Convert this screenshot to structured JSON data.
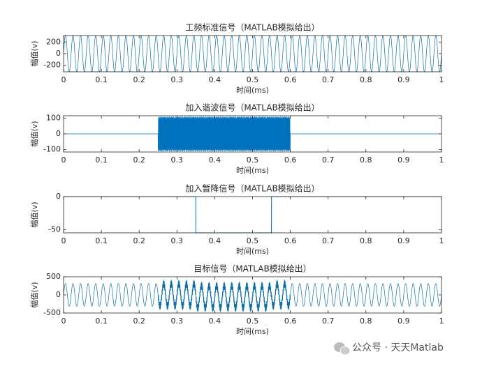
{
  "chart_data": [
    {
      "type": "sine",
      "title": "工频标准信号（MATLAB模拟给出）",
      "xlabel": "时间(ms)",
      "ylabel": "幅值(v)",
      "amplitude": 311,
      "cycles": 50,
      "xlim": [
        0,
        1
      ],
      "ylim": [
        -311,
        311
      ],
      "xticks": [
        0,
        0.1,
        0.2,
        0.3,
        0.4,
        0.5,
        0.6,
        0.7,
        0.8,
        0.9,
        1
      ],
      "yticks": [
        -200,
        0,
        200
      ],
      "color": "#0e6fa8"
    },
    {
      "type": "sine",
      "title": "加入谐波信号（MATLAB模拟给出）",
      "xlabel": "时间(ms)",
      "ylabel": "幅值(v)",
      "amplitude": 110,
      "cycles": 650,
      "start": 0.25,
      "end": 0.6,
      "xlim": [
        0,
        1
      ],
      "ylim": [
        -115,
        115
      ],
      "xticks": [
        0,
        0.1,
        0.2,
        0.3,
        0.4,
        0.5,
        0.6,
        0.7,
        0.8,
        0.9,
        1
      ],
      "yticks": [
        -100,
        0,
        100
      ],
      "color": "#0072bd"
    },
    {
      "type": "step",
      "title": "加入暂降信号（MATLAB模拟给出）",
      "xlabel": "时间(ms)",
      "ylabel": "幅值(v)",
      "value": -55,
      "start": 0.35,
      "end": 0.55,
      "xlim": [
        0,
        1
      ],
      "ylim": [
        -55,
        0
      ],
      "xticks": [
        0,
        0.1,
        0.2,
        0.3,
        0.4,
        0.5,
        0.6,
        0.7,
        0.8,
        0.9,
        1
      ],
      "yticks": [
        -50,
        0
      ],
      "color": "#0072bd"
    },
    {
      "type": "sum",
      "title": "目标信号（MATLAB模拟给出）",
      "xlabel": "时间(ms)",
      "ylabel": "幅值(v)",
      "xlim": [
        0,
        1
      ],
      "ylim": [
        -500,
        500
      ],
      "xticks": [
        0,
        0.1,
        0.2,
        0.3,
        0.4,
        0.5,
        0.6,
        0.7,
        0.8,
        0.9,
        1
      ],
      "yticks": [
        -500,
        0,
        500
      ],
      "color": "#0e6fa8"
    }
  ],
  "watermark": "公众号 · 天天Matlab"
}
